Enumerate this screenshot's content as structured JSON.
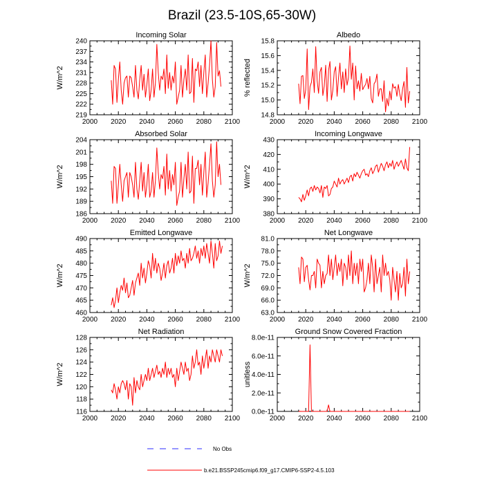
{
  "figure": {
    "title": "Brazil (23.5-10S,65-30W)",
    "legend": [
      {
        "label": "No Obs",
        "color": "#2b2bff",
        "style": "dashed"
      },
      {
        "label": "b.e21.BSSP245cmip6.f09_g17.CMIP6-SSP2-4.5.103",
        "color": "#ff0000",
        "style": "solid"
      }
    ]
  },
  "chart_data": [
    {
      "type": "line",
      "title": "Incoming Solar",
      "ylabel": "W/m^2",
      "xlabel": "",
      "xlim": [
        2000,
        2100
      ],
      "ylim": [
        219,
        240
      ],
      "xticks": [
        "2000",
        "2020",
        "2040",
        "2060",
        "2080",
        "2100"
      ],
      "yticks": [
        "219",
        "222",
        "225",
        "228",
        "231",
        "234",
        "237",
        "240"
      ],
      "series": [
        {
          "name": "b.e21.BSSP245cmip6.f09_g17.CMIP6-SSP2-4.5.103",
          "color": "#ff0000",
          "x_start": 2015,
          "values": [
            228.8,
            222,
            233,
            232,
            222.5,
            229,
            234,
            226,
            222,
            228,
            229.5,
            230,
            224,
            230,
            229.5,
            227,
            224,
            233,
            226,
            223.5,
            229,
            233,
            226,
            230.5,
            224,
            227.5,
            232,
            223,
            226,
            232,
            224,
            228,
            239,
            231,
            226,
            230,
            229,
            232,
            225,
            236,
            226.5,
            231,
            226,
            230,
            228,
            234,
            222,
            224,
            226,
            233,
            224,
            229,
            232,
            226,
            236,
            225,
            225.5,
            235,
            222.5,
            232,
            231.5,
            234,
            227,
            233,
            225,
            231,
            236,
            224,
            228,
            233,
            240,
            229,
            224,
            227,
            239.5,
            230,
            231.5,
            227
          ]
        }
      ]
    },
    {
      "type": "line",
      "title": "Albedo",
      "ylabel": "% reflected",
      "xlabel": "",
      "xlim": [
        2000,
        2100
      ],
      "ylim": [
        14.8,
        15.8
      ],
      "xticks": [
        "2000",
        "2020",
        "2040",
        "2060",
        "2080",
        "2100"
      ],
      "yticks": [
        "14.8",
        "15.0",
        "15.2",
        "15.4",
        "15.6",
        "15.8"
      ],
      "series": [
        {
          "name": "b.e21.BSSP245cmip6.f09_g17.CMIP6-SSP2-4.5.103",
          "color": "#ff0000",
          "x_start": 2015,
          "values": [
            15.22,
            14.95,
            15.32,
            15.33,
            15.02,
            15.14,
            15.69,
            14.87,
            15.18,
            15.24,
            15.42,
            15.1,
            15.72,
            15.26,
            15.09,
            15.38,
            15.44,
            15.06,
            15.19,
            15.47,
            14.98,
            15.4,
            15.52,
            15.0,
            15.13,
            15.38,
            15.45,
            15.05,
            15.3,
            15.5,
            15.15,
            15.38,
            15.1,
            15.42,
            15.2,
            15.3,
            15.73,
            15.28,
            15.5,
            15.0,
            15.46,
            15.15,
            15.26,
            15.12,
            15.36,
            15.14,
            15.18,
            15.21,
            15.29,
            15.15,
            15.32,
            15.02,
            14.96,
            15.22,
            15.25,
            15.35,
            15.05,
            15.15,
            15.15,
            14.98,
            15.26,
            14.84,
            15.02,
            14.92,
            15.12,
            15.0,
            15.22,
            15.16,
            15.18,
            15.05,
            15.21,
            15.08,
            14.99,
            15.15,
            15.25,
            14.9,
            15.44,
            14.96,
            15.12
          ]
        }
      ]
    },
    {
      "type": "line",
      "title": "Absorbed Solar",
      "ylabel": "W/m^2",
      "xlabel": "",
      "xlim": [
        2000,
        2100
      ],
      "ylim": [
        186,
        204
      ],
      "xticks": [
        "2000",
        "2020",
        "2040",
        "2060",
        "2080",
        "2100"
      ],
      "yticks": [
        "186",
        "189",
        "192",
        "195",
        "198",
        "201",
        "204"
      ],
      "series": [
        {
          "name": "b.e21.BSSP245cmip6.f09_g17.CMIP6-SSP2-4.5.103",
          "color": "#ff0000",
          "x_start": 2015,
          "values": [
            194,
            188.5,
            197.5,
            197,
            188.5,
            193,
            198,
            193,
            189,
            194,
            195,
            196,
            190,
            196,
            195,
            193,
            190,
            198.5,
            192,
            189.5,
            194,
            198.5,
            191.5,
            196,
            190,
            193,
            198,
            190,
            191.5,
            196,
            190,
            194,
            202,
            196,
            192,
            195.5,
            194.5,
            197.5,
            190.5,
            200.5,
            192,
            196.5,
            191.5,
            195.5,
            193,
            198.5,
            188,
            190,
            191.5,
            198.5,
            190,
            194.5,
            198,
            192,
            201,
            191,
            191.5,
            200,
            188.5,
            197,
            197,
            199,
            193,
            198,
            190.5,
            196,
            201,
            190,
            193.5,
            198,
            203,
            194,
            190,
            193,
            203.5,
            195,
            198,
            193
          ]
        }
      ]
    },
    {
      "type": "line",
      "title": "Incoming Longwave",
      "ylabel": "W/m^2",
      "xlabel": "",
      "xlim": [
        2000,
        2100
      ],
      "ylim": [
        380,
        430
      ],
      "xticks": [
        "2000",
        "2020",
        "2040",
        "2060",
        "2080",
        "2100"
      ],
      "yticks": [
        "380",
        "390",
        "400",
        "410",
        "420",
        "430"
      ],
      "series": [
        {
          "name": "b.e21.BSSP245cmip6.f09_g17.CMIP6-SSP2-4.5.103",
          "color": "#ff0000",
          "x_start": 2015,
          "values": [
            391,
            390,
            388,
            393,
            389,
            392,
            396,
            392,
            397,
            398,
            395,
            399,
            396,
            398,
            397,
            394,
            399,
            391,
            398,
            397,
            399,
            392,
            393,
            397,
            398,
            402,
            400,
            398,
            404,
            400,
            402,
            403,
            400,
            402,
            404,
            401,
            405,
            406,
            402,
            407,
            405,
            408,
            406,
            404,
            407,
            409,
            410,
            406,
            407,
            405,
            409,
            411,
            407,
            409,
            412,
            413,
            408,
            411,
            414,
            412,
            409,
            413,
            415,
            411,
            414,
            412,
            416,
            410,
            413,
            415,
            412,
            414,
            416,
            413,
            410,
            417,
            411,
            409,
            425
          ]
        }
      ]
    },
    {
      "type": "line",
      "title": "Emitted Longwave",
      "ylabel": "W/m^2",
      "xlabel": "",
      "xlim": [
        2000,
        2100
      ],
      "ylim": [
        460,
        490
      ],
      "xticks": [
        "2000",
        "2020",
        "2040",
        "2060",
        "2080",
        "2100"
      ],
      "yticks": [
        "460",
        "465",
        "470",
        "475",
        "480",
        "485",
        "490"
      ],
      "series": [
        {
          "name": "b.e21.BSSP245cmip6.f09_g17.CMIP6-SSP2-4.5.103",
          "color": "#ff0000",
          "x_start": 2015,
          "values": [
            463,
            466,
            462,
            465,
            470,
            464,
            468,
            471,
            469,
            474,
            468,
            472,
            466,
            467,
            470,
            473,
            467,
            472,
            474,
            476,
            471,
            480,
            474,
            478,
            472,
            476,
            481,
            479,
            474,
            484,
            477,
            482,
            476,
            480,
            478,
            473,
            476,
            480,
            474,
            479,
            481,
            476,
            478,
            482,
            476,
            484,
            479,
            483,
            480,
            485,
            481,
            482,
            478,
            484,
            480,
            486,
            481,
            482,
            484,
            487,
            482,
            485,
            480,
            486,
            483,
            487,
            482,
            488,
            484,
            480,
            489,
            484,
            478,
            488,
            481,
            483,
            489,
            484,
            487
          ]
        }
      ]
    },
    {
      "type": "line",
      "title": "Net Longwave",
      "ylabel": "W/m^2",
      "xlabel": "",
      "xlim": [
        2000,
        2100
      ],
      "ylim": [
        63,
        81
      ],
      "xticks": [
        "2000",
        "2020",
        "2040",
        "2060",
        "2080",
        "2100"
      ],
      "yticks": [
        "63.0",
        "66.0",
        "69.0",
        "72.0",
        "75.0",
        "78.0",
        "81.0"
      ],
      "series": [
        {
          "name": "b.e21.BSSP245cmip6.f09_g17.CMIP6-SSP2-4.5.103",
          "color": "#ff0000",
          "x_start": 2015,
          "values": [
            74,
            70,
            76.5,
            76,
            70.5,
            74,
            74.5,
            71,
            68.5,
            72,
            72,
            73,
            69,
            76,
            75,
            74.5,
            69,
            73,
            70,
            72,
            72.5,
            77,
            72,
            76,
            71,
            74,
            77,
            72,
            75,
            73,
            76,
            69.5,
            75,
            74,
            71,
            77,
            72,
            78,
            70,
            75,
            72,
            75,
            70,
            76,
            73,
            76,
            68,
            69,
            71,
            75,
            70,
            77,
            74,
            68,
            76,
            70,
            72,
            74,
            68,
            77,
            72,
            75,
            72,
            73,
            71,
            66,
            74,
            71,
            68,
            73,
            66,
            72.5,
            69,
            70,
            74,
            67,
            76,
            70,
            73
          ]
        }
      ]
    },
    {
      "type": "line",
      "title": "Net Radiation",
      "ylabel": "W/m^2",
      "xlabel": "",
      "xlim": [
        2000,
        2100
      ],
      "ylim": [
        116,
        128
      ],
      "xticks": [
        "2000",
        "2020",
        "2040",
        "2060",
        "2080",
        "2100"
      ],
      "yticks": [
        "116",
        "118",
        "120",
        "122",
        "124",
        "126",
        "128"
      ],
      "series": [
        {
          "name": "b.e21.BSSP245cmip6.f09_g17.CMIP6-SSP2-4.5.103",
          "color": "#ff0000",
          "x_start": 2015,
          "values": [
            119.5,
            119,
            120.5,
            119.5,
            118,
            120,
            119,
            120.5,
            121,
            120.5,
            119.5,
            121,
            118,
            120.5,
            120,
            117,
            121.5,
            119,
            121,
            120,
            119.5,
            122,
            120,
            121,
            122,
            121,
            123,
            121,
            122,
            123,
            121.5,
            122.5,
            123.5,
            122,
            122.5,
            121.5,
            123,
            122,
            124,
            121.5,
            123,
            122,
            123,
            121.5,
            122,
            120,
            123,
            121,
            122.5,
            124,
            123,
            122,
            124,
            122.5,
            123,
            121,
            122,
            125,
            123,
            124,
            126,
            123.5,
            124,
            122,
            125,
            123,
            124.5,
            126,
            123,
            125,
            124,
            126,
            125,
            124,
            126,
            125,
            124,
            126,
            125
          ]
        }
      ]
    },
    {
      "type": "line",
      "title": "Ground Snow Covered Fraction",
      "ylabel": "unitless",
      "xlabel": "",
      "xlim": [
        2000,
        2100
      ],
      "ylim": [
        0,
        8e-11
      ],
      "xticks": [
        "2000",
        "2020",
        "2040",
        "2060",
        "2080",
        "2100"
      ],
      "yticks": [
        "0.0e-11",
        "2.0e-11",
        "4.0e-11",
        "6.0e-11",
        "8.0e-11"
      ],
      "series": [
        {
          "name": "b.e21.BSSP245cmip6.f09_g17.CMIP6-SSP2-4.5.103",
          "color": "#ff0000",
          "x_start": 2015,
          "values": [
            0,
            1e-13,
            0,
            0,
            0,
            0,
            0,
            0,
            7.2e-11,
            0,
            0,
            0,
            0,
            0,
            0,
            0,
            0,
            0,
            0,
            0,
            0,
            7e-12,
            0,
            0,
            0,
            0,
            0,
            0,
            0,
            0,
            0,
            0,
            0,
            0,
            0,
            0,
            0,
            0,
            0,
            0,
            0,
            0,
            0,
            0,
            0,
            0,
            0,
            0,
            0,
            0,
            0,
            0,
            0,
            0,
            0,
            0,
            0,
            0,
            0,
            0,
            0,
            0,
            0,
            0,
            0,
            0,
            0,
            0,
            0,
            0,
            0,
            0,
            0,
            0,
            0,
            0,
            0,
            0,
            0
          ]
        }
      ]
    }
  ]
}
